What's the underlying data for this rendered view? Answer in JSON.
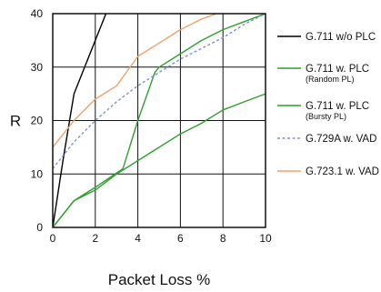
{
  "chart_data": {
    "type": "line",
    "title": "",
    "xlabel": "Packet Loss %",
    "ylabel": "R",
    "xlim": [
      0,
      10
    ],
    "ylim": [
      0,
      40
    ],
    "xticks": [
      "0",
      "2",
      "4",
      "6",
      "8",
      "10"
    ],
    "yticks": [
      "0",
      "10",
      "20",
      "30",
      "40"
    ],
    "grid": true,
    "legend_position": "right",
    "series": [
      {
        "name": "G.711 w/o PLC",
        "sub": "",
        "color": "#000000",
        "dash": "solid",
        "x": [
          0,
          0.5,
          1,
          1.5,
          2,
          2.5
        ],
        "y": [
          0,
          13,
          25,
          30,
          35,
          40
        ]
      },
      {
        "name": "G.711 w. PLC",
        "sub": "(Random PL)",
        "color": "#2ea02e",
        "dash": "solid",
        "x": [
          0,
          1,
          2,
          3,
          4,
          5,
          6,
          7,
          8,
          9,
          10
        ],
        "y": [
          0,
          5,
          7,
          10,
          12.5,
          15,
          17.5,
          19.5,
          22,
          23.5,
          25
        ]
      },
      {
        "name": "G.711 w. PLC",
        "sub": "(Bursty PL)",
        "color": "#2ea02e",
        "dash": "solid",
        "x": [
          0,
          1,
          2,
          3.3,
          4,
          4.8,
          5,
          6,
          7,
          8,
          9,
          10
        ],
        "y": [
          0,
          5,
          7.5,
          11,
          20,
          29,
          30,
          32.5,
          35,
          37,
          38.5,
          40
        ]
      },
      {
        "name": "G.729A w. VAD",
        "sub": "",
        "color": "#7f8fd6",
        "dash": "dashed",
        "x": [
          0,
          1,
          2,
          3,
          4,
          5,
          6,
          7,
          8,
          9,
          10
        ],
        "y": [
          11,
          16,
          20,
          23.5,
          26.5,
          29,
          31.5,
          33.5,
          35.5,
          38,
          40
        ]
      },
      {
        "name": "G.723.1 w. VAD",
        "sub": "",
        "color": "#f0a070",
        "dash": "solid",
        "x": [
          0,
          1,
          2,
          3,
          4,
          5,
          6,
          7,
          7.7
        ],
        "y": [
          15,
          20,
          24,
          26.5,
          32,
          34.5,
          37,
          39,
          40
        ]
      }
    ]
  }
}
